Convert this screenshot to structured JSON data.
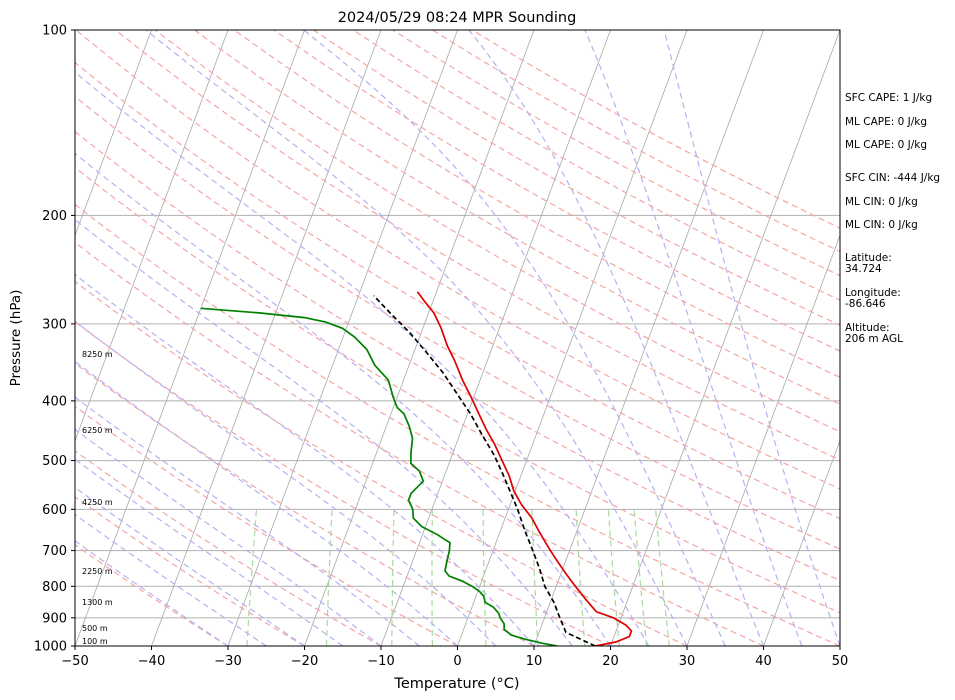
{
  "chart_data": {
    "type": "line",
    "title": "2024/05/29 08:24 MPR Sounding",
    "xlabel": "Temperature (°C)",
    "ylabel": "Pressure (hPa)",
    "xlim": [
      -50,
      50
    ],
    "ylim": [
      1000,
      100
    ],
    "y_scale": "log",
    "skew": true,
    "x_ticks": [
      "−50",
      "−40",
      "−30",
      "−20",
      "−10",
      "0",
      "10",
      "20",
      "30",
      "40",
      "50"
    ],
    "y_ticks": [
      "100",
      "200",
      "300",
      "400",
      "500",
      "600",
      "700",
      "800",
      "900",
      "1000"
    ],
    "height_labels": [
      "8250 m",
      "6250 m",
      "4250 m",
      "2250 m",
      "1300 m",
      "500 m",
      "100 m"
    ],
    "series": [
      {
        "color": "#e00000",
        "points": [
          [
            18,
            1000
          ],
          [
            20.5,
            985
          ],
          [
            22,
            965
          ],
          [
            22,
            945
          ],
          [
            21,
            925
          ],
          [
            19,
            900
          ],
          [
            16.5,
            880
          ],
          [
            15.5,
            860
          ],
          [
            14.5,
            840
          ],
          [
            13.5,
            820
          ],
          [
            12.5,
            800
          ],
          [
            11.5,
            780
          ],
          [
            10.5,
            760
          ],
          [
            9.5,
            740
          ],
          [
            8.5,
            720
          ],
          [
            7.5,
            700
          ],
          [
            6.5,
            680
          ],
          [
            5,
            650
          ],
          [
            3.5,
            620
          ],
          [
            1.5,
            590
          ],
          [
            -0.2,
            560
          ],
          [
            -1.5,
            530
          ],
          [
            -3.2,
            500
          ],
          [
            -5,
            470
          ],
          [
            -6.8,
            445
          ],
          [
            -8.5,
            420
          ],
          [
            -10.3,
            395
          ],
          [
            -12.3,
            370
          ],
          [
            -14.2,
            345
          ],
          [
            -16,
            325
          ],
          [
            -17.6,
            305
          ],
          [
            -19.3,
            288
          ],
          [
            -21.2,
            275
          ],
          [
            -22.5,
            266
          ]
        ]
      },
      {
        "color": "#008000",
        "points": [
          [
            13,
            1000
          ],
          [
            11,
            990
          ],
          [
            8.5,
            975
          ],
          [
            6.5,
            960
          ],
          [
            5.3,
            940
          ],
          [
            5,
            920
          ],
          [
            4.2,
            900
          ],
          [
            3.8,
            885
          ],
          [
            2.8,
            865
          ],
          [
            1.5,
            850
          ],
          [
            1,
            830
          ],
          [
            0.2,
            815
          ],
          [
            -1,
            800
          ],
          [
            -2.5,
            785
          ],
          [
            -4.5,
            770
          ],
          [
            -5.3,
            755
          ],
          [
            -5.5,
            730
          ],
          [
            -5.7,
            700
          ],
          [
            -6,
            680
          ],
          [
            -8,
            660
          ],
          [
            -10.5,
            640
          ],
          [
            -12,
            620
          ],
          [
            -12.5,
            600
          ],
          [
            -13.5,
            580
          ],
          [
            -13.5,
            565
          ],
          [
            -12.5,
            540
          ],
          [
            -13.5,
            520
          ],
          [
            -15,
            505
          ],
          [
            -15.5,
            485
          ],
          [
            -16,
            460
          ],
          [
            -17,
            440
          ],
          [
            -18.3,
            420
          ],
          [
            -19.5,
            410
          ],
          [
            -20.5,
            395
          ],
          [
            -22,
            370
          ],
          [
            -24.5,
            350
          ],
          [
            -26.3,
            330
          ],
          [
            -28.5,
            315
          ],
          [
            -30.5,
            305
          ],
          [
            -33,
            298
          ],
          [
            -36,
            293
          ],
          [
            -42,
            288
          ],
          [
            -50,
            283
          ]
        ]
      },
      {
        "color": "#000000",
        "dashed": true,
        "points": [
          [
            18,
            1000
          ],
          [
            13.5,
            950
          ],
          [
            12,
            900
          ],
          [
            10.5,
            850
          ],
          [
            8.5,
            800
          ],
          [
            7,
            750
          ],
          [
            5.2,
            700
          ],
          [
            3.2,
            650
          ],
          [
            1.2,
            600
          ],
          [
            -0.7,
            560
          ],
          [
            -2.5,
            525
          ],
          [
            -4.5,
            490
          ],
          [
            -7,
            455
          ],
          [
            -9.6,
            420
          ],
          [
            -12.3,
            390
          ],
          [
            -15.2,
            360
          ],
          [
            -18.2,
            335
          ],
          [
            -21.5,
            310
          ],
          [
            -24.7,
            290
          ],
          [
            -28,
            270
          ]
        ]
      }
    ]
  },
  "info_lines": [
    "SFC CAPE: 1 J/kg",
    "ML CAPE: 0 J/kg",
    "ML CAPE: 0 J/kg",
    "SFC CIN: -444 J/kg",
    "ML CIN: 0 J/kg",
    "ML CIN: 0 J/kg",
    "Latitude:\n34.724",
    "Longitude:\n-86.646",
    "Altitude:\n206 m AGL"
  ]
}
